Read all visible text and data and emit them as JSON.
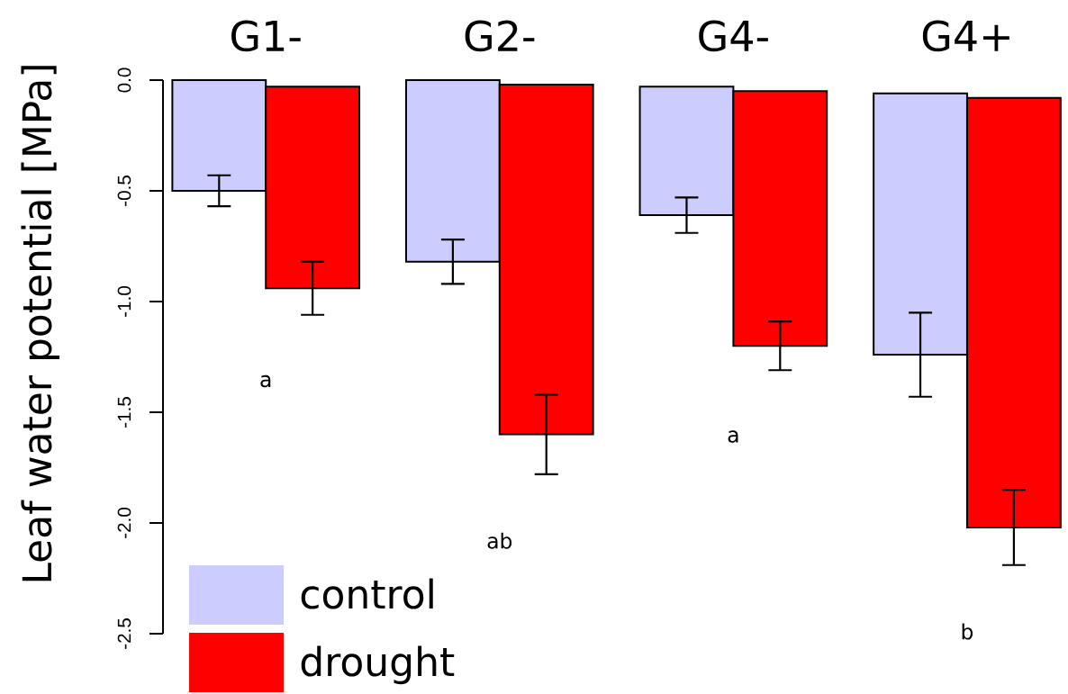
{
  "chart_data": {
    "type": "bar",
    "ylabel": "Leaf water potential [MPa]",
    "categories": [
      "G1-",
      "G2-",
      "G4-",
      "G4+"
    ],
    "series": [
      {
        "name": "control",
        "color": "#ccccff",
        "values": [
          -0.5,
          -0.82,
          -0.58,
          -1.18
        ],
        "base": [
          0,
          0,
          -0.03,
          -0.06
        ],
        "errors": [
          0.07,
          0.1,
          0.08,
          0.19
        ]
      },
      {
        "name": "drought",
        "color": "#ff0000",
        "values": [
          -0.91,
          -1.58,
          -1.15,
          -1.94
        ],
        "base": [
          -0.03,
          -0.02,
          -0.05,
          -0.08
        ],
        "errors": [
          0.12,
          0.18,
          0.11,
          0.17
        ]
      }
    ],
    "ylim": [
      -2.5,
      0
    ],
    "yticks": [
      -2.5,
      {
        "value": -2,
        "label": "-2.0"
      },
      -1.5,
      {
        "value": -1,
        "label": "-1.0"
      },
      -0.5,
      {
        "value": 0,
        "label": "0.0"
      }
    ],
    "annotations": [
      "a",
      "ab",
      "a",
      "b"
    ],
    "legend": "bottom left"
  }
}
